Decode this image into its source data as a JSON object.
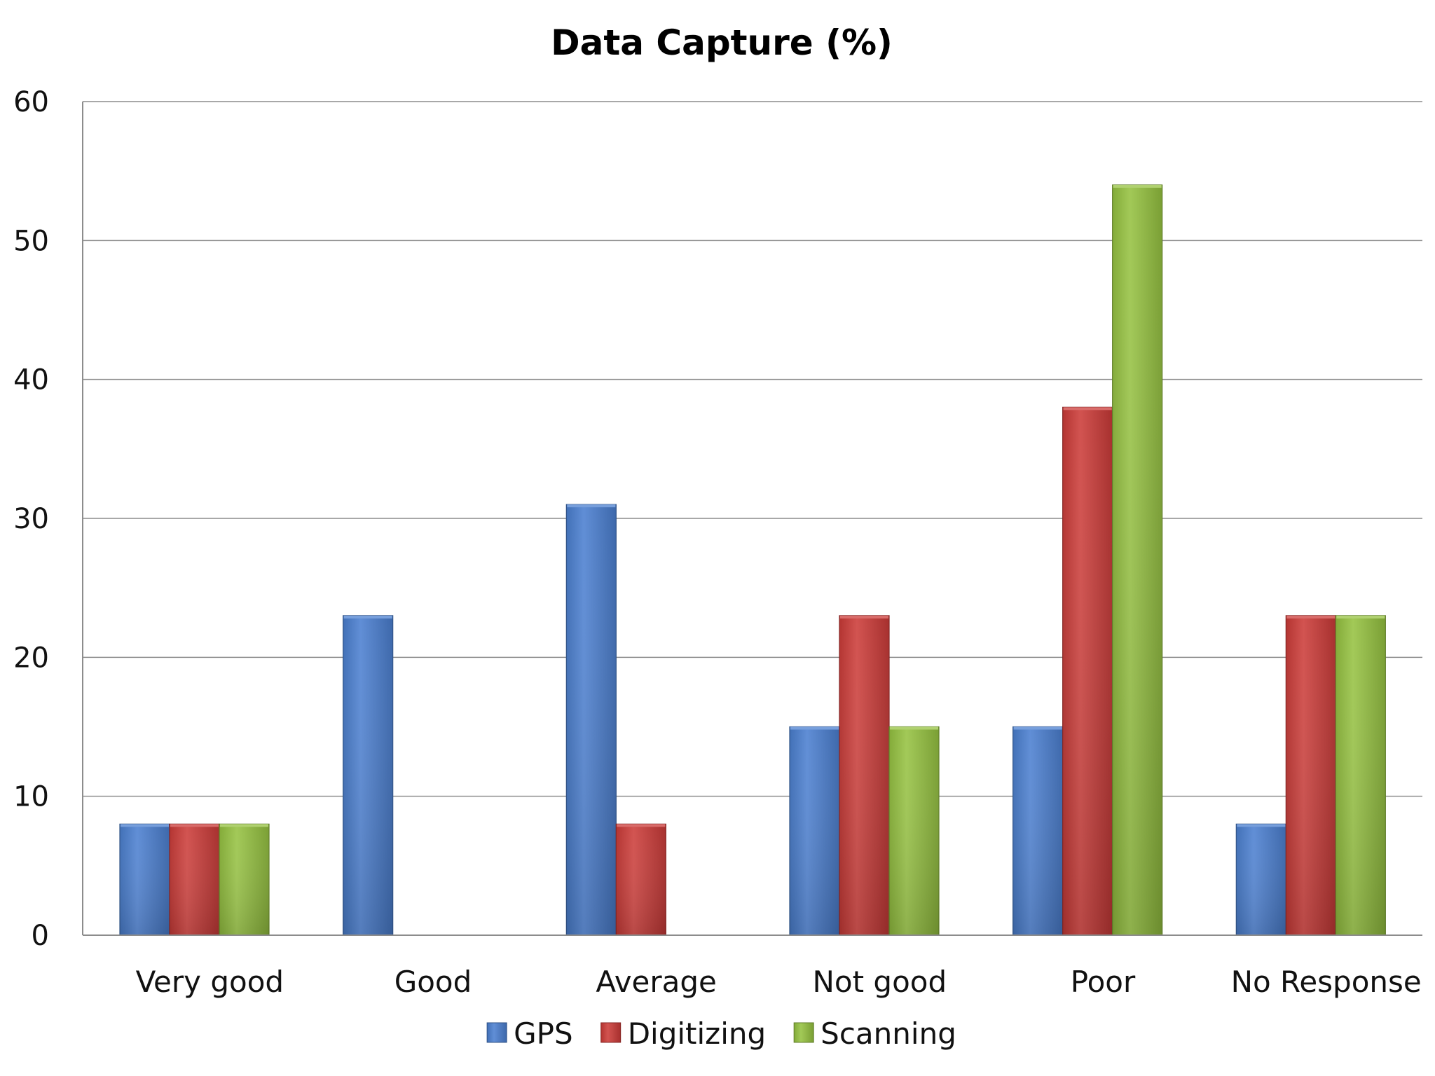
{
  "chart_data": {
    "type": "bar",
    "title": "Data Capture (%)",
    "xlabel": "",
    "ylabel": "",
    "ylim": [
      0,
      60
    ],
    "yticks": [
      0,
      10,
      20,
      30,
      40,
      50,
      60
    ],
    "grid": true,
    "legend_position": "bottom",
    "categories": [
      "Very good",
      "Good",
      "Average",
      "Not good",
      "Poor",
      "No Response"
    ],
    "series": [
      {
        "name": "GPS",
        "color": "#4a7fd0",
        "values": [
          8,
          23,
          31,
          15,
          15,
          8
        ]
      },
      {
        "name": "Digitizing",
        "color": "#cc3b38",
        "values": [
          8,
          0,
          8,
          23,
          38,
          23
        ]
      },
      {
        "name": "Scanning",
        "color": "#95c240",
        "values": [
          8,
          0,
          0,
          15,
          54,
          23
        ]
      }
    ]
  }
}
